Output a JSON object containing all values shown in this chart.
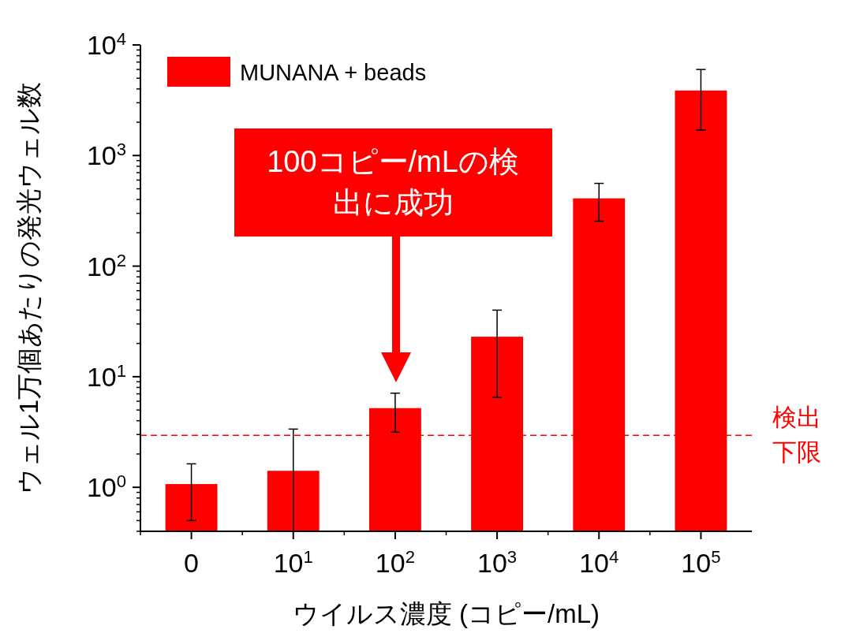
{
  "chart_data": {
    "type": "bar",
    "xlabel": "ウイルス濃度 (コピー/mL)",
    "ylabel": "ウェル1万個あたりの発光ウェル数",
    "categories": [
      "0",
      "10$^{1}$",
      "10$^{2}$",
      "10$^{3}$",
      "10$^{4}$",
      "10$^{5}$"
    ],
    "series": [
      {
        "name": "MUNANA + beads",
        "color": "#ff0000",
        "values": [
          1.07,
          1.41,
          5.2,
          23,
          410,
          3870
        ],
        "errors": [
          [
            0.5,
            1.63
          ],
          [
            0.4,
            3.36
          ],
          [
            3.15,
            7.1
          ],
          [
            6.5,
            40
          ],
          [
            255,
            560
          ],
          [
            1700,
            6000
          ]
        ]
      }
    ],
    "log": "y",
    "ylim": [
      0.4,
      10000
    ],
    "yticks": [
      {
        "value": 1,
        "label": "10$^{0}$"
      },
      {
        "value": 10,
        "label": "10$^{1}$"
      },
      {
        "value": 100,
        "label": "10$^{2}$"
      },
      {
        "value": 1000,
        "label": "10$^{3}$"
      },
      {
        "value": 10000,
        "label": "10$^{4}$"
      }
    ],
    "ref_lines": [
      {
        "axis": "y",
        "value": 2.95,
        "label": "検出下限",
        "color": "#ff0000",
        "line_style": "dashed"
      }
    ],
    "annotations": [
      "100コピー/mLの検出に成功"
    ],
    "legend": "top left",
    "grid": false
  }
}
